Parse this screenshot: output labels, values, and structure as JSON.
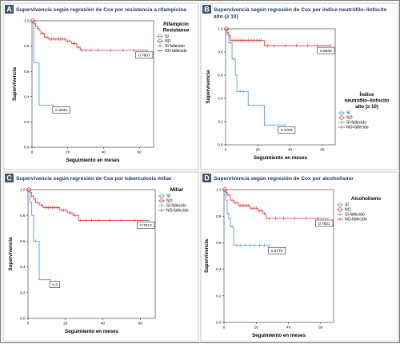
{
  "figure": {
    "colors": {
      "si": "#4a90d9",
      "no": "#d93838",
      "badge": "#44546a",
      "title": "#1f3864"
    }
  },
  "chart_data": [
    {
      "panel": "A",
      "type": "line",
      "title": "Supervivencia según regresión de Cox por resistencia a rifampicina",
      "xlabel": "Seguimiento en meses",
      "ylabel": "Supervivencia",
      "xlim": [
        0,
        68
      ],
      "ylim": [
        0,
        1.0
      ],
      "xticks": [
        "0",
        "20",
        "40",
        "60"
      ],
      "yticks": [
        "0.0",
        "0.2",
        "0.4",
        "0.6",
        "0.8",
        "1.0"
      ],
      "grid": false,
      "legend": {
        "position": "top-right",
        "title": "Rifampicin Resistance",
        "entries": [
          "SÍ",
          "NO",
          "SÍ-fallecido",
          "NO-fallecido"
        ]
      },
      "annotations": [
        {
          "text": "0.3333",
          "x": 12,
          "y": 0.3333
        },
        {
          "text": "0.7667",
          "x": 64,
          "y": 0.7667
        }
      ],
      "series": [
        {
          "name": "SÍ",
          "color": "#4a90d9",
          "steps": [
            [
              0,
              1.0
            ],
            [
              1,
              0.667
            ],
            [
              4,
              0.3333
            ],
            [
              12,
              0.3333
            ]
          ],
          "censored": [
            [
              12,
              0.3333
            ]
          ],
          "marker_label": "SÍ-fallecido"
        },
        {
          "name": "NO",
          "color": "#d93838",
          "steps": [
            [
              0,
              1.0
            ],
            [
              1,
              0.98
            ],
            [
              2,
              0.96
            ],
            [
              3,
              0.94
            ],
            [
              4,
              0.92
            ],
            [
              5,
              0.9
            ],
            [
              7,
              0.87
            ],
            [
              9,
              0.855
            ],
            [
              19,
              0.84
            ],
            [
              22,
              0.82
            ],
            [
              25,
              0.79
            ],
            [
              27,
              0.7667
            ],
            [
              65,
              0.7667
            ]
          ],
          "censored": [
            [
              2,
              0.96
            ],
            [
              3,
              0.94
            ],
            [
              5,
              0.9
            ],
            [
              6,
              0.9
            ],
            [
              8,
              0.87
            ],
            [
              10,
              0.855
            ],
            [
              11,
              0.855
            ],
            [
              12,
              0.855
            ],
            [
              13,
              0.855
            ],
            [
              14,
              0.855
            ],
            [
              15,
              0.855
            ],
            [
              16,
              0.855
            ],
            [
              17,
              0.855
            ],
            [
              18,
              0.855
            ],
            [
              20,
              0.84
            ],
            [
              21,
              0.84
            ],
            [
              23,
              0.82
            ],
            [
              24,
              0.82
            ],
            [
              26,
              0.79
            ],
            [
              28,
              0.7667
            ],
            [
              30,
              0.7667
            ],
            [
              33,
              0.7667
            ],
            [
              37,
              0.7667
            ],
            [
              44,
              0.7667
            ],
            [
              51,
              0.7667
            ],
            [
              57,
              0.7667
            ]
          ],
          "marker_label": "NO-fallecido"
        }
      ]
    },
    {
      "panel": "B",
      "type": "line",
      "title": "Supervivencia según regresión de Cox por índice neutrófilo–linfocito alto (≥ 10)",
      "xlabel": "Seguimiento en meses",
      "ylabel": "Supervivencia",
      "xlim": [
        0,
        68
      ],
      "ylim": [
        0,
        1.0
      ],
      "xticks": [
        "0",
        "20",
        "40",
        "60"
      ],
      "yticks": [
        "0.0",
        "0.2",
        "0.4",
        "0.6",
        "0.8",
        "1.0"
      ],
      "grid": false,
      "legend": {
        "position": "top-right",
        "title": "Índice neutrófilo–linfocito alto (≥ 10)",
        "entries": [
          "SÍ",
          "NO",
          "SÍ-fallecido",
          "NO-fallecido"
        ]
      },
      "annotations": [
        {
          "text": "0.8546",
          "x": 58,
          "y": 0.8546
        },
        {
          "text": "0.1706",
          "x": 33,
          "y": 0.1706
        }
      ],
      "series": [
        {
          "name": "SÍ",
          "color": "#4a90d9",
          "steps": [
            [
              0,
              1.0
            ],
            [
              1,
              0.95
            ],
            [
              2,
              0.88
            ],
            [
              4,
              0.74
            ],
            [
              6,
              0.6
            ],
            [
              7,
              0.46
            ],
            [
              14,
              0.34
            ],
            [
              24,
              0.1706
            ],
            [
              37,
              0.1706
            ]
          ],
          "censored": [
            [
              3,
              0.88
            ],
            [
              5,
              0.74
            ],
            [
              9,
              0.46
            ],
            [
              11,
              0.46
            ],
            [
              37,
              0.1706
            ]
          ],
          "marker_label": "SÍ-fallecido"
        },
        {
          "name": "NO",
          "color": "#d93838",
          "steps": [
            [
              0,
              1.0
            ],
            [
              1,
              0.97
            ],
            [
              2,
              0.94
            ],
            [
              3,
              0.9
            ],
            [
              24,
              0.8546
            ],
            [
              65,
              0.8546
            ]
          ],
          "censored": [
            [
              4,
              0.9
            ],
            [
              5,
              0.9
            ],
            [
              6,
              0.9
            ],
            [
              7,
              0.9
            ],
            [
              8,
              0.9
            ],
            [
              9,
              0.9
            ],
            [
              10,
              0.9
            ],
            [
              11,
              0.9
            ],
            [
              12,
              0.9
            ],
            [
              13,
              0.9
            ],
            [
              14,
              0.9
            ],
            [
              15,
              0.9
            ],
            [
              16,
              0.9
            ],
            [
              17,
              0.9
            ],
            [
              18,
              0.9
            ],
            [
              19,
              0.9
            ],
            [
              20,
              0.9
            ],
            [
              21,
              0.9
            ],
            [
              22,
              0.9
            ],
            [
              26,
              0.8546
            ],
            [
              30,
              0.8546
            ],
            [
              37,
              0.8546
            ],
            [
              44,
              0.8546
            ],
            [
              51,
              0.8546
            ],
            [
              57,
              0.8546
            ],
            [
              65,
              0.8546
            ]
          ],
          "marker_label": "NO-fallecido"
        }
      ]
    },
    {
      "panel": "C",
      "type": "line",
      "title": "Supervivencia según regresión de Cox por tuberculosis miliar",
      "xlabel": "Seguimiento en meses",
      "ylabel": "Supervivencia",
      "xlim": [
        0,
        68
      ],
      "ylim": [
        0,
        1.0
      ],
      "xticks": [
        "0",
        "20",
        "40",
        "60"
      ],
      "yticks": [
        "0.0",
        "0.2",
        "0.4",
        "0.6",
        "0.8",
        "1.0"
      ],
      "grid": false,
      "legend": {
        "position": "top-right",
        "title": "Miliar",
        "entries": [
          "SÍ",
          "NO",
          "SÍ-fallecido",
          "NO-fallecido"
        ]
      },
      "annotations": [
        {
          "text": "0.3",
          "x": 12,
          "y": 0.3
        },
        {
          "text": "0.7613",
          "x": 64,
          "y": 0.7613
        }
      ],
      "series": [
        {
          "name": "SÍ",
          "color": "#4a90d9",
          "steps": [
            [
              0,
              1.0
            ],
            [
              1,
              0.9
            ],
            [
              2,
              0.8
            ],
            [
              3,
              0.6
            ],
            [
              6,
              0.3
            ],
            [
              12,
              0.3
            ]
          ],
          "censored": [
            [
              4,
              0.6
            ],
            [
              12,
              0.3
            ]
          ],
          "marker_label": "SÍ-fallecido"
        },
        {
          "name": "NO",
          "color": "#d93838",
          "steps": [
            [
              0,
              1.0
            ],
            [
              1,
              0.98
            ],
            [
              2,
              0.95
            ],
            [
              3,
              0.93
            ],
            [
              4,
              0.9
            ],
            [
              6,
              0.88
            ],
            [
              8,
              0.86
            ],
            [
              17,
              0.84
            ],
            [
              21,
              0.82
            ],
            [
              24,
              0.8
            ],
            [
              27,
              0.7613
            ],
            [
              65,
              0.7613
            ]
          ],
          "censored": [
            [
              2,
              0.95
            ],
            [
              3,
              0.93
            ],
            [
              5,
              0.9
            ],
            [
              7,
              0.88
            ],
            [
              9,
              0.86
            ],
            [
              10,
              0.86
            ],
            [
              11,
              0.86
            ],
            [
              12,
              0.86
            ],
            [
              13,
              0.86
            ],
            [
              14,
              0.86
            ],
            [
              15,
              0.86
            ],
            [
              16,
              0.86
            ],
            [
              18,
              0.84
            ],
            [
              19,
              0.84
            ],
            [
              20,
              0.84
            ],
            [
              22,
              0.82
            ],
            [
              23,
              0.82
            ],
            [
              25,
              0.8
            ],
            [
              28,
              0.7613
            ],
            [
              31,
              0.7613
            ],
            [
              34,
              0.7613
            ],
            [
              38,
              0.7613
            ],
            [
              44,
              0.7613
            ],
            [
              50,
              0.7613
            ],
            [
              57,
              0.7613
            ]
          ],
          "marker_label": "NO-fallecido"
        }
      ]
    },
    {
      "panel": "D",
      "type": "line",
      "title": "Supervivencia según regresión de Cox por alcoholismo",
      "xlabel": "Seguimiento en meses",
      "ylabel": "Supervivencia",
      "xlim": [
        0,
        68
      ],
      "ylim": [
        0,
        1.0
      ],
      "xticks": [
        "0",
        "20",
        "40",
        "60"
      ],
      "yticks": [
        "0.0",
        "0.2",
        "0.4",
        "0.6",
        "0.8",
        "1.0"
      ],
      "grid": false,
      "legend": {
        "position": "top-right",
        "title": "Alcoholismo",
        "entries": [
          "SÍ",
          "NO",
          "SÍ-fallecido",
          "NO-fallecido"
        ]
      },
      "annotations": [
        {
          "text": "0.5770",
          "x": 28,
          "y": 0.577
        },
        {
          "text": "0.7831",
          "x": 64,
          "y": 0.7831
        }
      ],
      "series": [
        {
          "name": "SÍ",
          "color": "#4a90d9",
          "steps": [
            [
              0,
              1.0
            ],
            [
              1,
              0.92
            ],
            [
              2,
              0.82
            ],
            [
              3,
              0.78
            ],
            [
              4,
              0.72
            ],
            [
              6,
              0.58
            ],
            [
              28,
              0.577
            ]
          ],
          "censored": [
            [
              2,
              0.82
            ],
            [
              5,
              0.72
            ],
            [
              8,
              0.58
            ],
            [
              10,
              0.58
            ],
            [
              13,
              0.58
            ],
            [
              16,
              0.58
            ],
            [
              19,
              0.58
            ],
            [
              22,
              0.58
            ],
            [
              25,
              0.58
            ],
            [
              28,
              0.577
            ]
          ],
          "marker_label": "SÍ-fallecido"
        },
        {
          "name": "NO",
          "color": "#d93838",
          "steps": [
            [
              0,
              1.0
            ],
            [
              1,
              0.98
            ],
            [
              2,
              0.96
            ],
            [
              4,
              0.92
            ],
            [
              6,
              0.9
            ],
            [
              9,
              0.88
            ],
            [
              16,
              0.86
            ],
            [
              21,
              0.84
            ],
            [
              24,
              0.82
            ],
            [
              26,
              0.7831
            ],
            [
              65,
              0.7831
            ]
          ],
          "censored": [
            [
              2,
              0.96
            ],
            [
              3,
              0.96
            ],
            [
              5,
              0.92
            ],
            [
              7,
              0.9
            ],
            [
              8,
              0.9
            ],
            [
              10,
              0.88
            ],
            [
              11,
              0.88
            ],
            [
              12,
              0.88
            ],
            [
              13,
              0.88
            ],
            [
              14,
              0.88
            ],
            [
              15,
              0.88
            ],
            [
              17,
              0.86
            ],
            [
              18,
              0.86
            ],
            [
              19,
              0.86
            ],
            [
              20,
              0.86
            ],
            [
              22,
              0.84
            ],
            [
              23,
              0.84
            ],
            [
              25,
              0.82
            ],
            [
              28,
              0.7831
            ],
            [
              32,
              0.7831
            ],
            [
              37,
              0.7831
            ],
            [
              44,
              0.7831
            ],
            [
              51,
              0.7831
            ],
            [
              58,
              0.7831
            ]
          ],
          "marker_label": "NO-fallecido"
        }
      ]
    }
  ]
}
